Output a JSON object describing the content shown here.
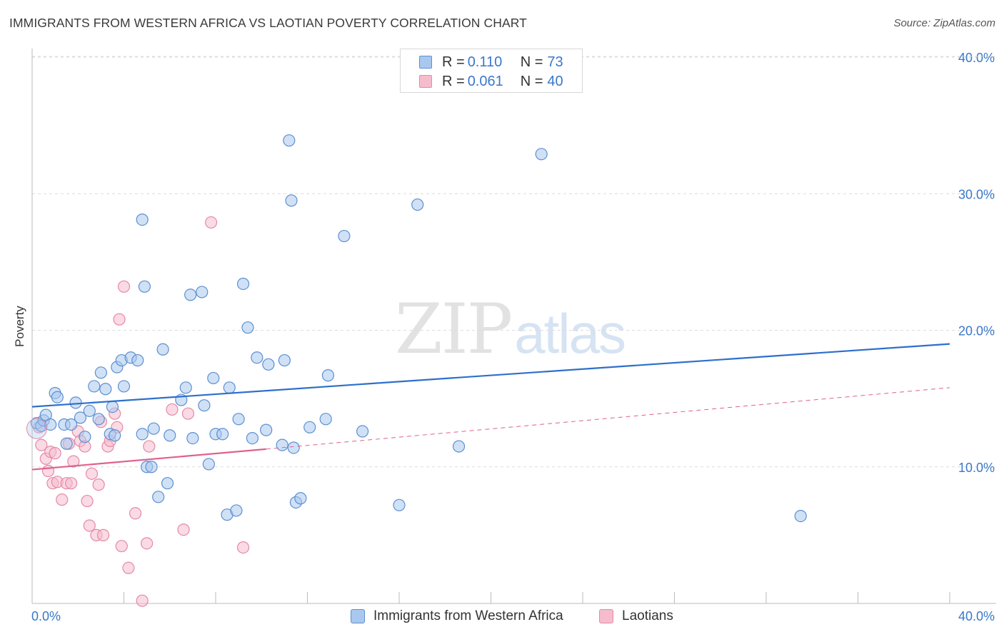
{
  "header": {
    "title": "IMMIGRANTS FROM WESTERN AFRICA VS LAOTIAN POVERTY CORRELATION CHART",
    "source": "Source: ZipAtlas.com"
  },
  "watermark": {
    "zip": "ZIP",
    "atlas": "atlas"
  },
  "legend": {
    "rows": [
      {
        "r_label": "R = ",
        "r_value": "0.110",
        "n_label": "N = ",
        "n_value": "73"
      },
      {
        "r_label": "R = ",
        "r_value": "0.061",
        "n_label": "N = ",
        "n_value": "40"
      }
    ]
  },
  "chart_data": {
    "type": "scatter",
    "title": "IMMIGRANTS FROM WESTERN AFRICA VS LAOTIAN POVERTY CORRELATION CHART",
    "xlabel": "",
    "ylabel": "Poverty",
    "xlim": [
      0,
      40
    ],
    "ylim": [
      0,
      40
    ],
    "x_tick_labels": [
      "0.0%",
      "40.0%"
    ],
    "y_ticks": [
      10,
      20,
      30,
      40
    ],
    "y_tick_labels": [
      "10.0%",
      "20.0%",
      "30.0%",
      "40.0%"
    ],
    "grid": true,
    "colors": {
      "blue_fill": "#a9c8ef",
      "blue_stroke": "#5d8fd1",
      "blue_line": "#2e6fcc",
      "pink_fill": "#f6bccd",
      "pink_stroke": "#e48aa6",
      "pink_line": "#e0608c",
      "tick_text": "#3a78c9"
    },
    "series": [
      {
        "name": "Immigrants from Western Africa",
        "R": 0.11,
        "N": 73,
        "trend": {
          "x": [
            0,
            40
          ],
          "y": [
            14.4,
            19.0
          ],
          "dashed_from": null
        },
        "points": [
          [
            0.2,
            13.2
          ],
          [
            0.4,
            13.0
          ],
          [
            0.5,
            13.4
          ],
          [
            0.6,
            13.8
          ],
          [
            0.8,
            13.1
          ],
          [
            1.0,
            15.4
          ],
          [
            1.1,
            15.1
          ],
          [
            1.4,
            13.1
          ],
          [
            1.5,
            11.7
          ],
          [
            1.7,
            13.1
          ],
          [
            1.9,
            14.7
          ],
          [
            2.1,
            13.6
          ],
          [
            2.3,
            12.2
          ],
          [
            2.5,
            14.1
          ],
          [
            2.7,
            15.9
          ],
          [
            2.9,
            13.5
          ],
          [
            3.0,
            16.9
          ],
          [
            3.2,
            15.7
          ],
          [
            3.4,
            12.4
          ],
          [
            3.5,
            14.4
          ],
          [
            3.6,
            12.3
          ],
          [
            3.7,
            17.3
          ],
          [
            3.9,
            17.8
          ],
          [
            4.0,
            15.9
          ],
          [
            4.3,
            18.0
          ],
          [
            4.6,
            17.8
          ],
          [
            4.8,
            12.4
          ],
          [
            4.9,
            23.2
          ],
          [
            5.0,
            10.0
          ],
          [
            5.2,
            10.0
          ],
          [
            5.3,
            12.8
          ],
          [
            5.5,
            7.8
          ],
          [
            5.7,
            18.6
          ],
          [
            5.9,
            8.8
          ],
          [
            6.0,
            12.3
          ],
          [
            6.5,
            14.9
          ],
          [
            6.7,
            15.8
          ],
          [
            6.9,
            22.6
          ],
          [
            7.0,
            12.1
          ],
          [
            7.4,
            22.8
          ],
          [
            7.5,
            14.5
          ],
          [
            7.7,
            10.2
          ],
          [
            7.9,
            16.5
          ],
          [
            8.0,
            12.4
          ],
          [
            8.3,
            12.4
          ],
          [
            8.5,
            6.5
          ],
          [
            8.6,
            15.8
          ],
          [
            8.9,
            6.8
          ],
          [
            9.0,
            13.5
          ],
          [
            9.2,
            23.4
          ],
          [
            9.4,
            20.2
          ],
          [
            9.6,
            12.1
          ],
          [
            9.8,
            18.0
          ],
          [
            10.2,
            12.7
          ],
          [
            10.3,
            17.5
          ],
          [
            10.9,
            11.6
          ],
          [
            11.0,
            17.8
          ],
          [
            11.2,
            33.9
          ],
          [
            11.3,
            29.5
          ],
          [
            11.4,
            11.4
          ],
          [
            11.5,
            7.4
          ],
          [
            11.7,
            7.7
          ],
          [
            12.1,
            12.9
          ],
          [
            12.8,
            13.5
          ],
          [
            12.9,
            16.7
          ],
          [
            13.6,
            26.9
          ],
          [
            14.4,
            12.6
          ],
          [
            16.0,
            7.2
          ],
          [
            16.8,
            29.2
          ],
          [
            18.6,
            11.5
          ],
          [
            22.2,
            32.9
          ],
          [
            4.8,
            28.1
          ],
          [
            33.5,
            6.4
          ]
        ]
      },
      {
        "name": "Laotians",
        "R": 0.061,
        "N": 40,
        "trend": {
          "x": [
            0,
            10.2
          ],
          "y": [
            9.8,
            11.3
          ],
          "dashed_to_x": 40,
          "dashed_to_y": 15.8
        },
        "points": [
          [
            0.3,
            12.9
          ],
          [
            0.4,
            11.6
          ],
          [
            0.6,
            10.6
          ],
          [
            0.7,
            9.7
          ],
          [
            0.8,
            11.1
          ],
          [
            0.9,
            8.8
          ],
          [
            1.0,
            11.0
          ],
          [
            1.1,
            8.9
          ],
          [
            1.3,
            7.6
          ],
          [
            1.5,
            8.8
          ],
          [
            1.6,
            11.7
          ],
          [
            1.7,
            8.8
          ],
          [
            1.8,
            10.4
          ],
          [
            2.0,
            12.6
          ],
          [
            2.1,
            11.9
          ],
          [
            2.3,
            11.5
          ],
          [
            2.4,
            7.5
          ],
          [
            2.5,
            5.7
          ],
          [
            2.6,
            9.5
          ],
          [
            2.8,
            5.0
          ],
          [
            2.9,
            8.7
          ],
          [
            3.0,
            13.3
          ],
          [
            3.1,
            5.0
          ],
          [
            3.3,
            11.5
          ],
          [
            3.4,
            11.9
          ],
          [
            3.6,
            13.9
          ],
          [
            3.7,
            12.9
          ],
          [
            3.8,
            20.8
          ],
          [
            3.9,
            4.2
          ],
          [
            4.0,
            23.2
          ],
          [
            4.2,
            2.6
          ],
          [
            4.5,
            6.6
          ],
          [
            4.8,
            0.2
          ],
          [
            5.0,
            4.4
          ],
          [
            5.1,
            11.5
          ],
          [
            6.1,
            14.2
          ],
          [
            6.6,
            5.4
          ],
          [
            6.8,
            13.9
          ],
          [
            7.8,
            27.9
          ],
          [
            9.2,
            4.1
          ]
        ]
      }
    ]
  },
  "bottom_legend": {
    "items": [
      {
        "label": "Immigrants from Western Africa"
      },
      {
        "label": "Laotians"
      }
    ]
  }
}
